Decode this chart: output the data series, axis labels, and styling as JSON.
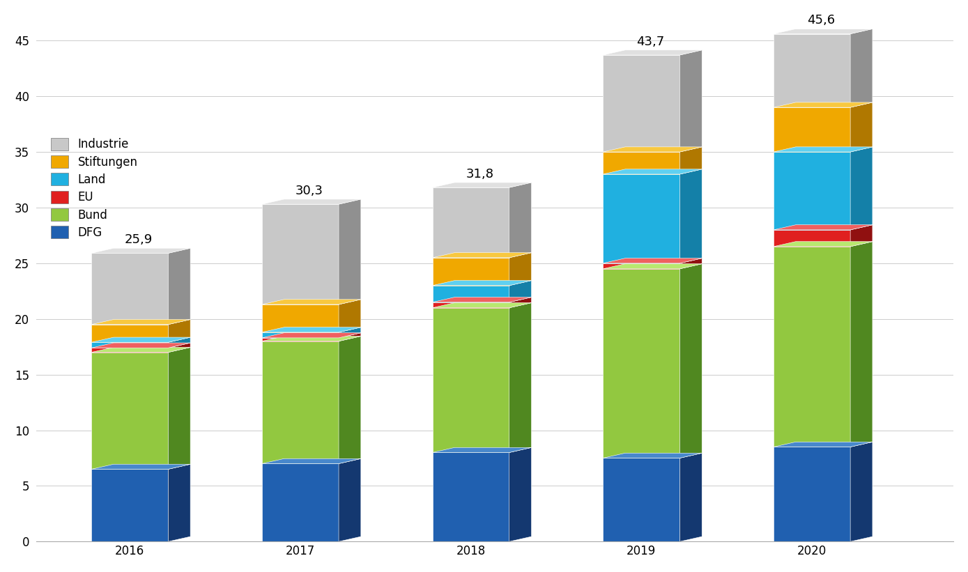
{
  "years": [
    "2016",
    "2017",
    "2018",
    "2019",
    "2020"
  ],
  "totals": [
    25.9,
    30.3,
    31.8,
    43.7,
    45.6
  ],
  "segments": {
    "DFG": [
      6.5,
      7.0,
      8.0,
      7.5,
      8.5
    ],
    "Bund": [
      10.5,
      11.0,
      13.0,
      17.0,
      18.0
    ],
    "EU": [
      0.4,
      0.3,
      0.5,
      0.5,
      1.5
    ],
    "Land": [
      0.5,
      0.5,
      1.5,
      8.0,
      7.0
    ],
    "Stiftungen": [
      1.6,
      2.5,
      2.5,
      2.0,
      4.0
    ],
    "Industrie": [
      6.4,
      9.0,
      6.3,
      8.7,
      6.6
    ]
  },
  "colors": {
    "DFG": "#2060b0",
    "Bund": "#92c840",
    "EU": "#e02020",
    "Land": "#20b0e0",
    "Stiftungen": "#f0a800",
    "Industrie": "#c8c8c8"
  },
  "side_colors": {
    "DFG": "#143870",
    "Bund": "#508820",
    "EU": "#901010",
    "Land": "#1480a8",
    "Stiftungen": "#b07800",
    "Industrie": "#909090"
  },
  "top_colors": {
    "DFG": "#4888cc",
    "Bund": "#b8e870",
    "EU": "#f06060",
    "Land": "#60d0f0",
    "Stiftungen": "#f8c840",
    "Industrie": "#e0e0e0"
  },
  "bar_width": 0.45,
  "ox": 0.13,
  "oy": 0.45,
  "ylim": [
    0,
    46
  ],
  "yticks": [
    0,
    5,
    10,
    15,
    20,
    25,
    30,
    35,
    40,
    45
  ],
  "legend_order": [
    "Industrie",
    "Stiftungen",
    "Land",
    "EU",
    "Bund",
    "DFG"
  ],
  "background_color": "#ffffff",
  "grid_color": "#cccccc",
  "label_fontsize": 13,
  "tick_fontsize": 12,
  "legend_fontsize": 12
}
